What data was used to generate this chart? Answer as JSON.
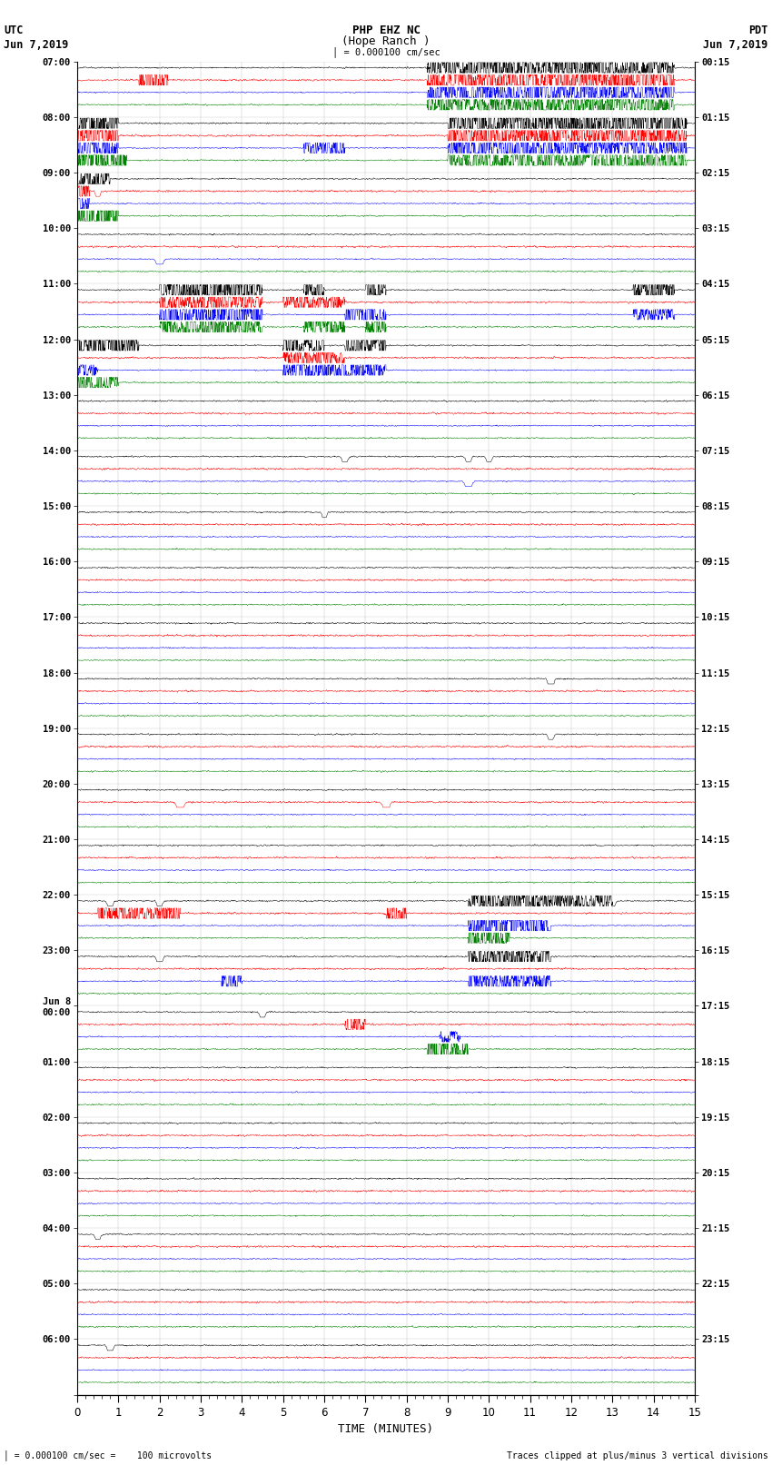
{
  "title_line1": "PHP EHZ NC",
  "title_line2": "(Hope Ranch )",
  "scale_label": "= 0.000100 cm/sec",
  "xlabel": "TIME (MINUTES)",
  "footer_left": "= 0.000100 cm/sec =    100 microvolts",
  "footer_right": "Traces clipped at plus/minus 3 vertical divisions",
  "xlim": [
    0,
    15
  ],
  "row_colors": [
    "black",
    "red",
    "blue",
    "green"
  ],
  "bg_color": "white",
  "utc_labels": [
    "07:00",
    "08:00",
    "09:00",
    "10:00",
    "11:00",
    "12:00",
    "13:00",
    "14:00",
    "15:00",
    "16:00",
    "17:00",
    "18:00",
    "19:00",
    "20:00",
    "21:00",
    "22:00",
    "23:00",
    "Jun 8\n00:00",
    "01:00",
    "02:00",
    "03:00",
    "04:00",
    "05:00",
    "06:00"
  ],
  "pdt_labels": [
    "00:15",
    "01:15",
    "02:15",
    "03:15",
    "04:15",
    "05:15",
    "06:15",
    "07:15",
    "08:15",
    "09:15",
    "10:15",
    "11:15",
    "12:15",
    "13:15",
    "14:15",
    "15:15",
    "16:15",
    "17:15",
    "18:15",
    "19:15",
    "20:15",
    "21:15",
    "22:15",
    "23:15"
  ]
}
